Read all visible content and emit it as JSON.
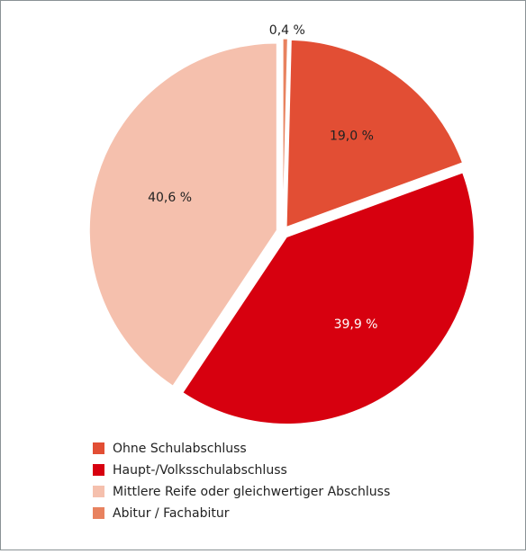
{
  "chart_data": {
    "type": "pie",
    "categories": [
      "Ohne Schulabschluss",
      "Haupt-/Volksschulabschluss",
      "Mittlere Reife oder gleichwertiger Abschluss",
      "Abitur / Fachabitur"
    ],
    "values": [
      19.0,
      39.9,
      40.6,
      0.4
    ],
    "value_labels": [
      "19,0 %",
      "39,9 %",
      "40,6 %",
      "0,4 %"
    ],
    "colors": [
      "#e24e34",
      "#d7000f",
      "#f5c0ad",
      "#e8825f"
    ],
    "legend": "bottom-left"
  }
}
